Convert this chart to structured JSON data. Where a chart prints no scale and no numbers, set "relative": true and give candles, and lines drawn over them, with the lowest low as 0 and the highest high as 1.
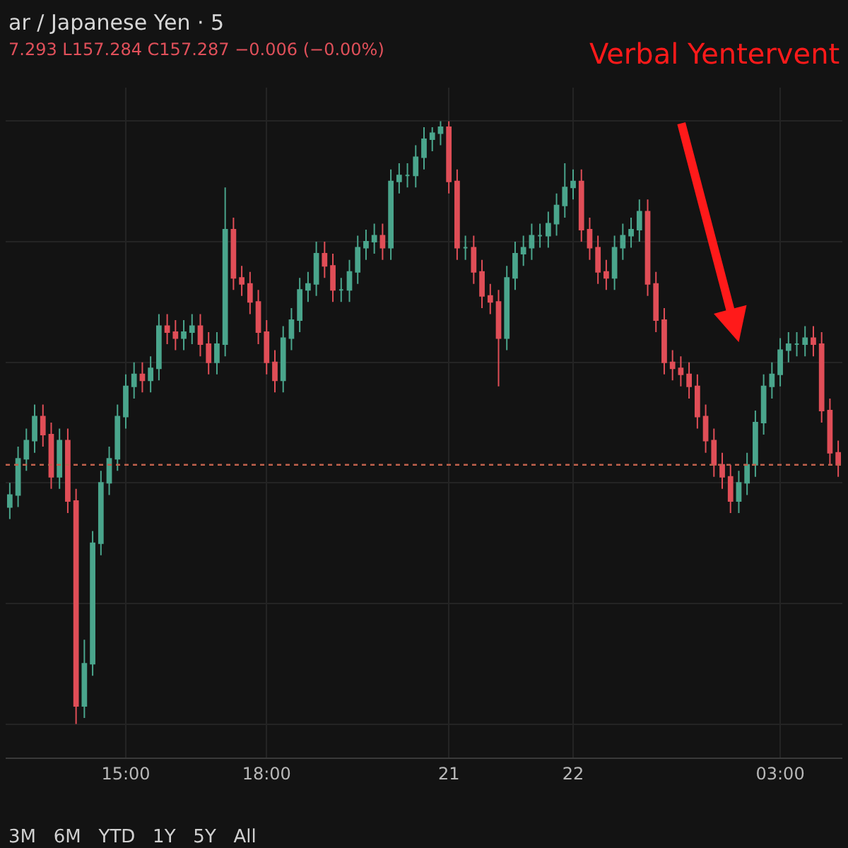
{
  "chart_data": {
    "type": "candlestick",
    "relative": true,
    "title": "ar / Japanese Yen · 5",
    "annotations": [
      "7.293 L157.284 C157.287 −0.006 (−0.00%)",
      "Verbal Yentervent",
      "3M   6M   YTD   1Y   5Y   All"
    ],
    "categories": [
      null,
      null,
      null,
      null,
      null,
      null,
      null,
      null,
      null,
      null,
      null,
      null,
      null,
      null,
      "15:00",
      null,
      null,
      null,
      null,
      null,
      null,
      null,
      null,
      null,
      null,
      null,
      null,
      null,
      null,
      null,
      null,
      "18:00",
      null,
      null,
      null,
      null,
      null,
      null,
      null,
      null,
      null,
      null,
      null,
      null,
      null,
      null,
      null,
      null,
      null,
      null,
      null,
      null,
      null,
      "21",
      null,
      null,
      null,
      null,
      null,
      null,
      null,
      null,
      null,
      null,
      null,
      null,
      null,
      null,
      "22",
      null,
      null,
      null,
      null,
      null,
      null,
      null,
      null,
      null,
      null,
      null,
      null,
      null,
      null,
      null,
      null,
      null,
      null,
      null,
      null,
      null,
      null,
      null,
      null,
      "03:00",
      null,
      null,
      null,
      null,
      null,
      null,
      null
    ],
    "ohlc": [
      [
        0.36,
        0.4,
        0.34,
        0.38
      ],
      [
        0.38,
        0.46,
        0.36,
        0.44
      ],
      [
        0.44,
        0.49,
        0.42,
        0.47
      ],
      [
        0.47,
        0.53,
        0.45,
        0.51
      ],
      [
        0.51,
        0.53,
        0.46,
        0.48
      ],
      [
        0.48,
        0.5,
        0.39,
        0.41
      ],
      [
        0.41,
        0.49,
        0.39,
        0.47
      ],
      [
        0.47,
        0.49,
        0.35,
        0.37
      ],
      [
        0.37,
        0.39,
        0,
        0.03
      ],
      [
        0.03,
        0.14,
        0.01,
        0.1
      ],
      [
        0.1,
        0.32,
        0.08,
        0.3
      ],
      [
        0.3,
        0.42,
        0.28,
        0.4
      ],
      [
        0.4,
        0.46,
        0.38,
        0.44
      ],
      [
        0.44,
        0.53,
        0.42,
        0.51
      ],
      [
        0.51,
        0.58,
        0.49,
        0.56
      ],
      [
        0.56,
        0.6,
        0.54,
        0.58
      ],
      [
        0.58,
        0.6,
        0.55,
        0.57
      ],
      [
        0.57,
        0.61,
        0.55,
        0.59
      ],
      [
        0.59,
        0.68,
        0.57,
        0.66
      ],
      [
        0.66,
        0.68,
        0.63,
        0.65
      ],
      [
        0.65,
        0.67,
        0.62,
        0.64
      ],
      [
        0.64,
        0.67,
        0.62,
        0.65
      ],
      [
        0.65,
        0.68,
        0.63,
        0.66
      ],
      [
        0.66,
        0.68,
        0.61,
        0.63
      ],
      [
        0.63,
        0.65,
        0.58,
        0.6
      ],
      [
        0.6,
        0.65,
        0.58,
        0.63
      ],
      [
        0.63,
        0.89,
        0.61,
        0.82
      ],
      [
        0.82,
        0.84,
        0.72,
        0.74
      ],
      [
        0.74,
        0.76,
        0.71,
        0.73
      ],
      [
        0.73,
        0.75,
        0.68,
        0.7
      ],
      [
        0.7,
        0.72,
        0.63,
        0.65
      ],
      [
        0.65,
        0.67,
        0.58,
        0.6
      ],
      [
        0.6,
        0.62,
        0.55,
        0.57
      ],
      [
        0.57,
        0.66,
        0.55,
        0.64
      ],
      [
        0.64,
        0.69,
        0.62,
        0.67
      ],
      [
        0.67,
        0.74,
        0.65,
        0.72
      ],
      [
        0.72,
        0.75,
        0.7,
        0.73
      ],
      [
        0.73,
        0.8,
        0.71,
        0.78
      ],
      [
        0.78,
        0.8,
        0.74,
        0.76
      ],
      [
        0.76,
        0.78,
        0.7,
        0.72
      ],
      [
        0.72,
        0.74,
        0.7,
        0.72
      ],
      [
        0.72,
        0.77,
        0.7,
        0.75
      ],
      [
        0.75,
        0.81,
        0.73,
        0.79
      ],
      [
        0.79,
        0.82,
        0.77,
        0.8
      ],
      [
        0.8,
        0.83,
        0.78,
        0.81
      ],
      [
        0.81,
        0.83,
        0.77,
        0.79
      ],
      [
        0.79,
        0.92,
        0.77,
        0.9
      ],
      [
        0.9,
        0.93,
        0.88,
        0.91
      ],
      [
        0.91,
        0.93,
        0.89,
        0.91
      ],
      [
        0.91,
        0.96,
        0.89,
        0.94
      ],
      [
        0.94,
        0.99,
        0.92,
        0.97
      ],
      [
        0.97,
        0.99,
        0.95,
        0.98
      ],
      [
        0.98,
        1,
        0.96,
        0.99
      ],
      [
        0.99,
        1,
        0.88,
        0.9
      ],
      [
        0.9,
        0.92,
        0.77,
        0.79
      ],
      [
        0.79,
        0.81,
        0.77,
        0.79
      ],
      [
        0.79,
        0.81,
        0.73,
        0.75
      ],
      [
        0.75,
        0.77,
        0.69,
        0.71
      ],
      [
        0.71,
        0.73,
        0.68,
        0.7
      ],
      [
        0.7,
        0.72,
        0.56,
        0.64
      ],
      [
        0.64,
        0.76,
        0.62,
        0.74
      ],
      [
        0.74,
        0.8,
        0.72,
        0.78
      ],
      [
        0.78,
        0.81,
        0.76,
        0.79
      ],
      [
        0.79,
        0.83,
        0.77,
        0.81
      ],
      [
        0.81,
        0.83,
        0.79,
        0.81
      ],
      [
        0.81,
        0.85,
        0.79,
        0.83
      ],
      [
        0.83,
        0.88,
        0.81,
        0.86
      ],
      [
        0.86,
        0.93,
        0.84,
        0.89
      ],
      [
        0.89,
        0.92,
        0.87,
        0.9
      ],
      [
        0.9,
        0.92,
        0.8,
        0.82
      ],
      [
        0.82,
        0.84,
        0.77,
        0.79
      ],
      [
        0.79,
        0.81,
        0.73,
        0.75
      ],
      [
        0.75,
        0.77,
        0.72,
        0.74
      ],
      [
        0.74,
        0.81,
        0.72,
        0.79
      ],
      [
        0.79,
        0.83,
        0.77,
        0.81
      ],
      [
        0.81,
        0.84,
        0.79,
        0.82
      ],
      [
        0.82,
        0.87,
        0.8,
        0.85
      ],
      [
        0.85,
        0.87,
        0.71,
        0.73
      ],
      [
        0.73,
        0.75,
        0.65,
        0.67
      ],
      [
        0.67,
        0.69,
        0.58,
        0.6
      ],
      [
        0.6,
        0.62,
        0.57,
        0.59
      ],
      [
        0.59,
        0.61,
        0.56,
        0.58
      ],
      [
        0.58,
        0.6,
        0.54,
        0.56
      ],
      [
        0.56,
        0.58,
        0.49,
        0.51
      ],
      [
        0.51,
        0.53,
        0.45,
        0.47
      ],
      [
        0.47,
        0.49,
        0.41,
        0.43
      ],
      [
        0.43,
        0.45,
        0.39,
        0.41
      ],
      [
        0.41,
        0.43,
        0.35,
        0.37
      ],
      [
        0.37,
        0.42,
        0.35,
        0.4
      ],
      [
        0.4,
        0.45,
        0.38,
        0.43
      ],
      [
        0.43,
        0.52,
        0.41,
        0.5
      ],
      [
        0.5,
        0.58,
        0.48,
        0.56
      ],
      [
        0.56,
        0.6,
        0.54,
        0.58
      ],
      [
        0.58,
        0.64,
        0.56,
        0.62
      ],
      [
        0.62,
        0.65,
        0.6,
        0.63
      ],
      [
        0.63,
        0.65,
        0.61,
        0.63
      ],
      [
        0.63,
        0.66,
        0.61,
        0.64
      ],
      [
        0.64,
        0.66,
        0.61,
        0.63
      ],
      [
        0.63,
        0.65,
        0.5,
        0.52
      ],
      [
        0.52,
        0.54,
        0.43,
        0.45
      ],
      [
        0.45,
        0.47,
        0.41,
        0.43
      ]
    ],
    "colors": [
      "#4aa58c",
      "#4aa58c",
      "#4aa58c",
      "#4aa58c",
      "#e04e57",
      "#e04e57",
      "#4aa58c",
      "#e04e57",
      "#e04e57",
      "#4aa58c",
      "#4aa58c",
      "#4aa58c",
      "#4aa58c",
      "#4aa58c",
      "#4aa58c",
      "#4aa58c",
      "#e04e57",
      "#4aa58c",
      "#4aa58c",
      "#e04e57",
      "#e04e57",
      "#4aa58c",
      "#4aa58c",
      "#e04e57",
      "#e04e57",
      "#4aa58c",
      "#4aa58c",
      "#e04e57",
      "#e04e57",
      "#e04e57",
      "#e04e57",
      "#e04e57",
      "#e04e57",
      "#4aa58c",
      "#4aa58c",
      "#4aa58c",
      "#4aa58c",
      "#4aa58c",
      "#e04e57",
      "#e04e57",
      "#4aa58c",
      "#4aa58c",
      "#4aa58c",
      "#4aa58c",
      "#4aa58c",
      "#e04e57",
      "#4aa58c",
      "#4aa58c",
      "#4aa58c",
      "#4aa58c",
      "#4aa58c",
      "#4aa58c",
      "#4aa58c",
      "#e04e57",
      "#e04e57",
      "#4aa58c",
      "#e04e57",
      "#e04e57",
      "#e04e57",
      "#e04e57",
      "#4aa58c",
      "#4aa58c",
      "#4aa58c",
      "#4aa58c",
      "#4aa58c",
      "#4aa58c",
      "#4aa58c",
      "#4aa58c",
      "#4aa58c",
      "#e04e57",
      "#e04e57",
      "#e04e57",
      "#e04e57",
      "#4aa58c",
      "#4aa58c",
      "#4aa58c",
      "#4aa58c",
      "#e04e57",
      "#e04e57",
      "#e04e57",
      "#e04e57",
      "#e04e57",
      "#e04e57",
      "#e04e57",
      "#e04e57",
      "#e04e57",
      "#e04e57",
      "#e04e57",
      "#4aa58c",
      "#4aa58c",
      "#4aa58c",
      "#4aa58c",
      "#4aa58c",
      "#4aa58c",
      "#4aa58c",
      "#4aa58c",
      "#4aa58c",
      "#e04e57",
      "#e04e57",
      "#e04e57",
      "#e04e57"
    ],
    "ref_lines": [
      {
        "axis": "y",
        "value": 0.43,
        "color": "#c0614c",
        "line_style": "dotted"
      }
    ],
    "grid": true,
    "tick_labels": "x"
  }
}
